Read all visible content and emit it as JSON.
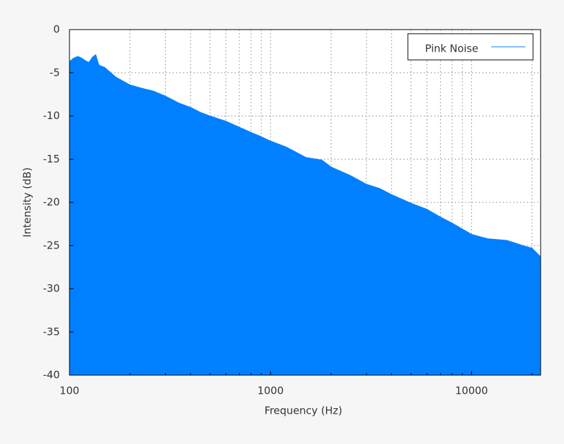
{
  "chart_data": {
    "type": "area",
    "x_label": "Frequency (Hz)",
    "y_label": "Intensity (dB)",
    "x_scale": "log",
    "xlim": [
      100,
      22050
    ],
    "ylim": [
      -40,
      0
    ],
    "xticks": [
      100,
      1000,
      10000
    ],
    "yticks": [
      -40,
      -35,
      -30,
      -25,
      -20,
      -15,
      -10,
      -5,
      0
    ],
    "x_minor_grid": [
      200,
      300,
      400,
      500,
      600,
      700,
      800,
      900,
      2000,
      3000,
      4000,
      5000,
      6000,
      7000,
      8000,
      9000,
      20000
    ],
    "grid": true,
    "legend": "upper right",
    "x": [
      100,
      105,
      110,
      115,
      120,
      125,
      130,
      135,
      140,
      150,
      170,
      200,
      230,
      260,
      300,
      350,
      400,
      450,
      500,
      600,
      700,
      800,
      900,
      1000,
      1200,
      1500,
      1800,
      2000,
      2500,
      3000,
      3500,
      4000,
      5000,
      6000,
      7000,
      8000,
      10000,
      12000,
      15000,
      18000,
      20000,
      22050
    ],
    "series": [
      {
        "name": "Pink Noise",
        "color": "#0080ff",
        "values": [
          -3.7,
          -3.3,
          -3.1,
          -3.3,
          -3.6,
          -3.8,
          -3.2,
          -2.9,
          -4.1,
          -4.4,
          -5.5,
          -6.4,
          -6.8,
          -7.1,
          -7.7,
          -8.5,
          -9.0,
          -9.6,
          -10.0,
          -10.6,
          -11.3,
          -11.9,
          -12.4,
          -12.9,
          -13.6,
          -14.8,
          -15.1,
          -15.9,
          -16.9,
          -17.9,
          -18.4,
          -19.1,
          -20.1,
          -20.8,
          -21.7,
          -22.4,
          -23.7,
          -24.2,
          -24.4,
          -25.0,
          -25.3,
          -26.3
        ]
      }
    ]
  }
}
